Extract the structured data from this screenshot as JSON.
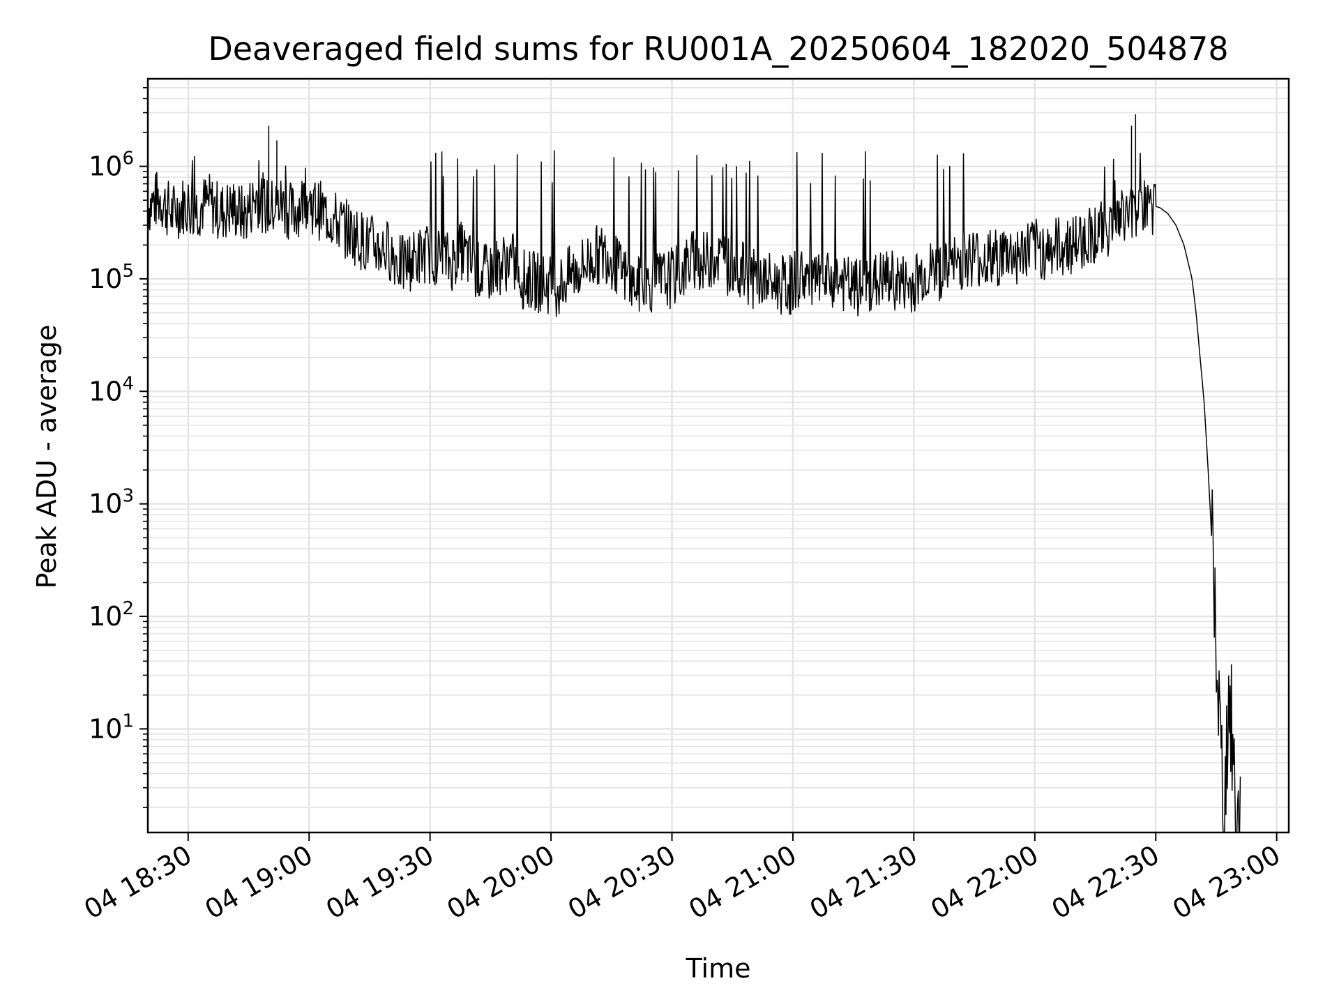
{
  "chart_data": {
    "type": "line",
    "title": "Deaveraged field sums for RU001A_20250604_182020_504878",
    "xlabel": "Time",
    "ylabel": "Peak ADU - average",
    "yscale": "log",
    "ylim": [
      1.2,
      6000000
    ],
    "xlim": [
      "2025-06-04 18:20",
      "2025-06-04 23:03"
    ],
    "grid": true,
    "line_color": "#000000",
    "x_ticks": [
      {
        "value": "2025-06-04 18:30",
        "label": "04 18:30"
      },
      {
        "value": "2025-06-04 19:00",
        "label": "04 19:00"
      },
      {
        "value": "2025-06-04 19:30",
        "label": "04 19:30"
      },
      {
        "value": "2025-06-04 20:00",
        "label": "04 20:00"
      },
      {
        "value": "2025-06-04 20:30",
        "label": "04 20:30"
      },
      {
        "value": "2025-06-04 21:00",
        "label": "04 21:00"
      },
      {
        "value": "2025-06-04 21:30",
        "label": "04 21:30"
      },
      {
        "value": "2025-06-04 22:00",
        "label": "04 22:00"
      },
      {
        "value": "2025-06-04 22:30",
        "label": "04 22:30"
      },
      {
        "value": "2025-06-04 23:00",
        "label": "04 23:00"
      }
    ],
    "y_ticks": [
      {
        "value": 10,
        "base": "10",
        "exp": "1"
      },
      {
        "value": 100,
        "base": "10",
        "exp": "2"
      },
      {
        "value": 1000,
        "base": "10",
        "exp": "3"
      },
      {
        "value": 10000,
        "base": "10",
        "exp": "4"
      },
      {
        "value": 100000,
        "base": "10",
        "exp": "5"
      },
      {
        "value": 1000000,
        "base": "10",
        "exp": "6"
      }
    ],
    "series": [
      {
        "x": [
          "2025-06-04 18:20",
          "2025-06-04 18:23",
          "2025-06-04 18:26",
          "2025-06-04 18:29",
          "2025-06-04 18:32",
          "2025-06-04 18:35",
          "2025-06-04 18:38",
          "2025-06-04 18:41",
          "2025-06-04 18:44",
          "2025-06-04 18:47",
          "2025-06-04 18:50",
          "2025-06-04 18:53",
          "2025-06-04 18:56",
          "2025-06-04 18:59",
          "2025-06-04 19:02",
          "2025-06-04 19:05",
          "2025-06-04 19:08",
          "2025-06-04 19:11",
          "2025-06-04 19:14",
          "2025-06-04 19:17",
          "2025-06-04 19:20",
          "2025-06-04 19:23",
          "2025-06-04 19:26",
          "2025-06-04 19:29",
          "2025-06-04 19:32",
          "2025-06-04 19:35",
          "2025-06-04 19:38",
          "2025-06-04 19:41",
          "2025-06-04 19:44",
          "2025-06-04 19:47",
          "2025-06-04 19:50",
          "2025-06-04 19:53",
          "2025-06-04 19:56",
          "2025-06-04 19:59",
          "2025-06-04 20:02",
          "2025-06-04 20:05",
          "2025-06-04 20:08",
          "2025-06-04 20:11",
          "2025-06-04 20:14",
          "2025-06-04 20:17",
          "2025-06-04 20:20",
          "2025-06-04 20:23",
          "2025-06-04 20:26",
          "2025-06-04 20:29",
          "2025-06-04 20:32",
          "2025-06-04 20:35",
          "2025-06-04 20:38",
          "2025-06-04 20:41",
          "2025-06-04 20:44",
          "2025-06-04 20:47",
          "2025-06-04 20:50",
          "2025-06-04 20:53",
          "2025-06-04 20:56",
          "2025-06-04 20:59",
          "2025-06-04 21:02",
          "2025-06-04 21:05",
          "2025-06-04 21:08",
          "2025-06-04 21:11",
          "2025-06-04 21:14",
          "2025-06-04 21:17",
          "2025-06-04 21:20",
          "2025-06-04 21:23",
          "2025-06-04 21:26",
          "2025-06-04 21:29",
          "2025-06-04 21:32",
          "2025-06-04 21:35",
          "2025-06-04 21:38",
          "2025-06-04 21:41",
          "2025-06-04 21:44",
          "2025-06-04 21:47",
          "2025-06-04 21:50",
          "2025-06-04 21:53",
          "2025-06-04 21:56",
          "2025-06-04 21:59",
          "2025-06-04 22:02",
          "2025-06-04 22:05",
          "2025-06-04 22:08",
          "2025-06-04 22:11",
          "2025-06-04 22:14",
          "2025-06-04 22:17",
          "2025-06-04 22:20",
          "2025-06-04 22:23",
          "2025-06-04 22:26",
          "2025-06-04 22:29",
          "2025-06-04 22:31",
          "2025-06-04 22:33",
          "2025-06-04 22:35",
          "2025-06-04 22:37",
          "2025-06-04 22:39",
          "2025-06-04 22:40",
          "2025-06-04 22:41",
          "2025-06-04 22:42",
          "2025-06-04 22:43",
          "2025-06-04 22:44",
          "2025-06-04 22:45",
          "2025-06-04 22:46",
          "2025-06-04 22:47",
          "2025-06-04 22:48",
          "2025-06-04 22:49",
          "2025-06-04 22:50",
          "2025-06-04 22:51"
        ],
        "y": [
          450000,
          520000,
          380000,
          460000,
          420000,
          480000,
          390000,
          430000,
          360000,
          550000,
          410000,
          470000,
          380000,
          520000,
          420000,
          360000,
          300000,
          250000,
          210000,
          190000,
          180000,
          130000,
          150000,
          170000,
          160000,
          140000,
          180000,
          120000,
          110000,
          130000,
          150000,
          100000,
          95000,
          90000,
          85000,
          110000,
          130000,
          160000,
          170000,
          120000,
          90000,
          85000,
          95000,
          100000,
          110000,
          150000,
          140000,
          160000,
          130000,
          120000,
          100000,
          95000,
          90000,
          85000,
          110000,
          95000,
          90000,
          100000,
          85000,
          80000,
          90000,
          100000,
          95000,
          85000,
          110000,
          120000,
          115000,
          140000,
          160000,
          150000,
          150000,
          170000,
          160000,
          190000,
          180000,
          190000,
          200000,
          210000,
          250000,
          270000,
          320000,
          380000,
          420000,
          450000,
          430000,
          380000,
          300000,
          200000,
          100000,
          50000,
          20000,
          8000,
          2000,
          400,
          60,
          8,
          1.4,
          20,
          8,
          1.4,
          1.4
        ],
        "spikes_approx": [
          2300000,
          1700000,
          1000000,
          1200000,
          1200000,
          1300000,
          1300000,
          1350000,
          1350000,
          1300000,
          1250000,
          1300000,
          1200000,
          1050000,
          2900000
        ]
      }
    ]
  }
}
